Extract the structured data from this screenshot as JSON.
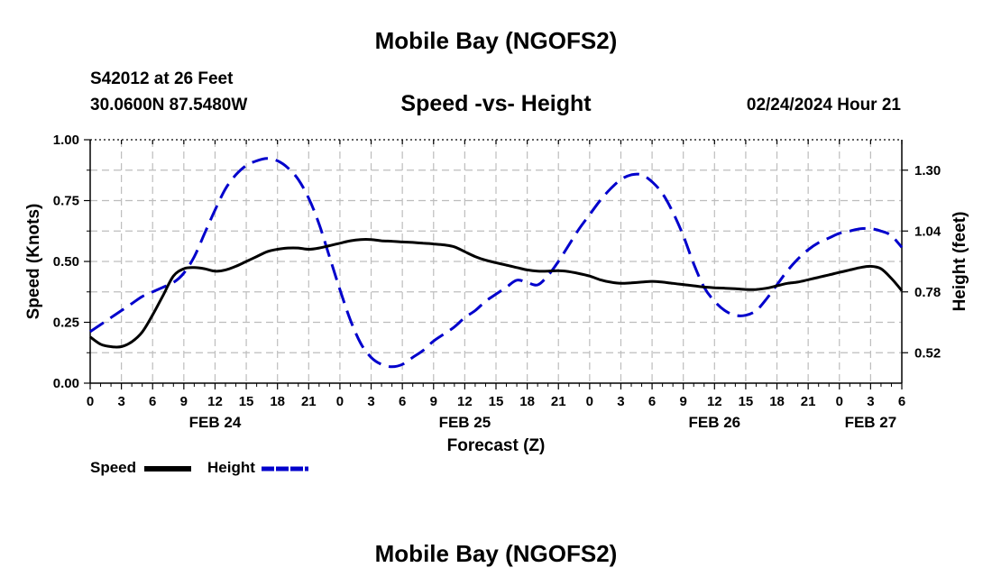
{
  "header": {
    "title": "Mobile Bay (NGOFS2)",
    "station": "S42012 at 26 Feet",
    "coords": "30.0600N  87.5480W",
    "subtitle": "Speed -vs- Height",
    "datetime": "02/24/2024 Hour 21"
  },
  "footer": {
    "title": "Mobile Bay (NGOFS2)"
  },
  "chart_data": {
    "type": "line",
    "xlabel": "Forecast (Z)",
    "ylabel": "Speed (Knots)",
    "y2label": "Height (feet)",
    "xlim": [
      0,
      78
    ],
    "ylim": [
      0,
      1
    ],
    "y2lim": [
      0.39,
      1.43
    ],
    "x_ticks": [
      0,
      3,
      6,
      9,
      12,
      15,
      18,
      21,
      24,
      27,
      30,
      33,
      36,
      39,
      42,
      45,
      48,
      51,
      54,
      57,
      60,
      63,
      66,
      69,
      72,
      75,
      78
    ],
    "x_tick_labels": [
      "0",
      "3",
      "6",
      "9",
      "12",
      "15",
      "18",
      "21",
      "0",
      "3",
      "6",
      "9",
      "12",
      "15",
      "18",
      "21",
      "0",
      "3",
      "6",
      "9",
      "12",
      "15",
      "18",
      "21",
      "0",
      "3",
      "6"
    ],
    "y_ticks": [
      0,
      0.25,
      0.5,
      0.75,
      1.0
    ],
    "y_tick_labels": [
      "0.00",
      "0.25",
      "0.50",
      "0.75",
      "1.00"
    ],
    "y2_ticks": [
      0.52,
      0.78,
      1.04,
      1.3
    ],
    "y2_tick_labels": [
      "0.52",
      "0.78",
      "1.04",
      "1.30"
    ],
    "date_labels": [
      {
        "label": "FEB 24",
        "x": 12
      },
      {
        "label": "FEB 25",
        "x": 36
      },
      {
        "label": "FEB 26",
        "x": 60
      },
      {
        "label": "FEB 27",
        "x": 75
      }
    ],
    "grid": true,
    "legend_position": "bottom-left",
    "series": [
      {
        "name": "Speed",
        "axis": "left",
        "color": "#000000",
        "style": "solid",
        "x": [
          0,
          1,
          2,
          3,
          4,
          5,
          6,
          7,
          8,
          9,
          10,
          11,
          12,
          13,
          14,
          15,
          16,
          17,
          18,
          19,
          20,
          21,
          22,
          23,
          24,
          25,
          26,
          27,
          28,
          29,
          30,
          31,
          32,
          33,
          34,
          35,
          36,
          37,
          38,
          39,
          40,
          41,
          42,
          43,
          44,
          45,
          46,
          47,
          48,
          49,
          50,
          51,
          52,
          53,
          54,
          55,
          56,
          57,
          58,
          59,
          60,
          61,
          62,
          63,
          64,
          65,
          66,
          67,
          68,
          69,
          70,
          71,
          72,
          73,
          74,
          75,
          76,
          77,
          78
        ],
        "y": [
          0.19,
          0.16,
          0.15,
          0.15,
          0.17,
          0.21,
          0.28,
          0.36,
          0.44,
          0.47,
          0.475,
          0.47,
          0.46,
          0.465,
          0.48,
          0.5,
          0.52,
          0.54,
          0.55,
          0.555,
          0.555,
          0.55,
          0.555,
          0.565,
          0.575,
          0.585,
          0.59,
          0.59,
          0.585,
          0.583,
          0.58,
          0.578,
          0.575,
          0.572,
          0.568,
          0.56,
          0.54,
          0.52,
          0.505,
          0.495,
          0.485,
          0.475,
          0.465,
          0.46,
          0.46,
          0.462,
          0.458,
          0.45,
          0.44,
          0.425,
          0.415,
          0.41,
          0.412,
          0.415,
          0.418,
          0.415,
          0.41,
          0.405,
          0.4,
          0.395,
          0.392,
          0.39,
          0.388,
          0.385,
          0.385,
          0.39,
          0.4,
          0.41,
          0.415,
          0.425,
          0.435,
          0.445,
          0.455,
          0.465,
          0.475,
          0.48,
          0.47,
          0.43,
          0.38
        ]
      },
      {
        "name": "Height",
        "axis": "right",
        "color": "#0000cc",
        "style": "dashed",
        "x": [
          0,
          1,
          2,
          3,
          4,
          5,
          6,
          7,
          8,
          9,
          10,
          11,
          12,
          13,
          14,
          15,
          16,
          17,
          18,
          19,
          20,
          21,
          22,
          23,
          24,
          25,
          26,
          27,
          28,
          29,
          30,
          31,
          32,
          33,
          34,
          35,
          36,
          37,
          38,
          39,
          40,
          41,
          42,
          43,
          44,
          45,
          46,
          47,
          48,
          49,
          50,
          51,
          52,
          53,
          54,
          55,
          56,
          57,
          58,
          59,
          60,
          61,
          62,
          63,
          64,
          65,
          66,
          67,
          68,
          69,
          70,
          71,
          72,
          73,
          74,
          75,
          76,
          77,
          78
        ],
        "y": [
          0.61,
          0.64,
          0.67,
          0.7,
          0.73,
          0.76,
          0.78,
          0.8,
          0.82,
          0.86,
          0.93,
          1.03,
          1.13,
          1.22,
          1.28,
          1.32,
          1.34,
          1.35,
          1.34,
          1.31,
          1.26,
          1.18,
          1.07,
          0.93,
          0.79,
          0.66,
          0.56,
          0.5,
          0.47,
          0.46,
          0.47,
          0.5,
          0.53,
          0.57,
          0.6,
          0.63,
          0.67,
          0.7,
          0.74,
          0.77,
          0.8,
          0.83,
          0.82,
          0.81,
          0.85,
          0.91,
          0.98,
          1.05,
          1.11,
          1.17,
          1.22,
          1.26,
          1.28,
          1.28,
          1.25,
          1.2,
          1.12,
          1.02,
          0.9,
          0.8,
          0.74,
          0.7,
          0.68,
          0.68,
          0.7,
          0.75,
          0.81,
          0.87,
          0.92,
          0.96,
          0.99,
          1.01,
          1.03,
          1.04,
          1.05,
          1.05,
          1.04,
          1.02,
          0.97
        ]
      }
    ]
  }
}
